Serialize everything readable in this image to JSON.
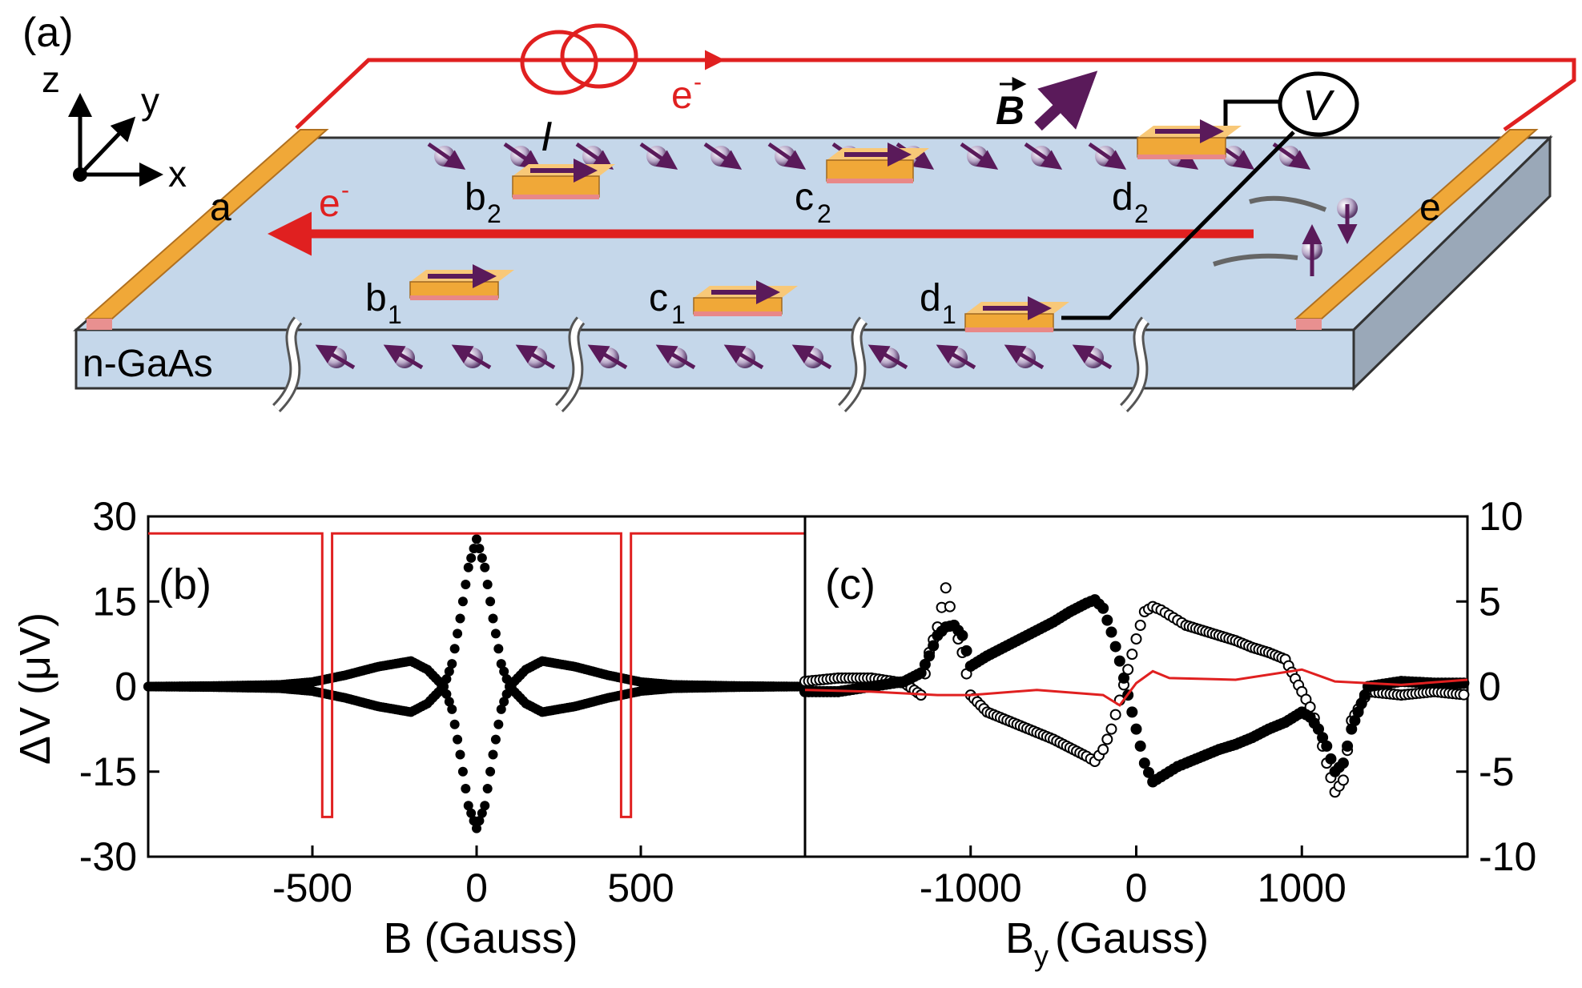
{
  "schematic": {
    "panel_label": "(a)",
    "axes": {
      "z": "z",
      "y": "y",
      "x": "x"
    },
    "current_label": "I",
    "electron_label": "e",
    "electron_sup": "-",
    "field_label": "B",
    "voltmeter_label": "V",
    "material_label": "n-GaAs",
    "contacts": [
      {
        "name": "a"
      },
      {
        "name": "e"
      }
    ],
    "electrodes": [
      {
        "letter": "b",
        "sub": "2"
      },
      {
        "letter": "c",
        "sub": "2"
      },
      {
        "letter": "d",
        "sub": "2"
      },
      {
        "letter": "b",
        "sub": "1"
      },
      {
        "letter": "c",
        "sub": "1"
      },
      {
        "letter": "d",
        "sub": "1"
      }
    ],
    "colors": {
      "substrate": "#c5d7ea",
      "contact": "#f0a838",
      "wire": "#e02020",
      "spin": "#5a1a5a"
    }
  },
  "chart_data": [
    {
      "type": "scatter",
      "panel_label": "(b)",
      "xlabel": "B (Gauss)",
      "ylabel": "ΔV (μV)",
      "xlim": [
        -1000,
        1000
      ],
      "ylim": [
        -30,
        30
      ],
      "xticks": [
        -500,
        0,
        500
      ],
      "yticks": [
        30,
        15,
        0,
        -15,
        -30
      ],
      "series": [
        {
          "marker": "filled-circle",
          "color": "#000000",
          "upper_x": [
            -1000,
            -800,
            -600,
            -500,
            -400,
            -300,
            -200,
            -150,
            -100,
            -75,
            -50,
            -25,
            0,
            25,
            50,
            75,
            100,
            150,
            200,
            300,
            400,
            500,
            600,
            800,
            1000
          ],
          "upper_y": [
            0,
            0.1,
            0.3,
            0.8,
            2,
            3.5,
            4.5,
            3,
            0,
            4,
            12,
            21,
            26,
            21,
            12,
            4,
            0,
            3,
            4.5,
            3.5,
            2,
            0.8,
            0.3,
            0.1,
            0
          ],
          "lower_x": [
            -1000,
            -800,
            -600,
            -500,
            -400,
            -300,
            -200,
            -150,
            -100,
            -75,
            -50,
            -25,
            0,
            25,
            50,
            75,
            100,
            150,
            200,
            300,
            400,
            500,
            600,
            800,
            1000
          ],
          "lower_y": [
            0,
            -0.1,
            -0.3,
            -0.8,
            -2,
            -3.5,
            -4.5,
            -3,
            0,
            -4,
            -12,
            -21,
            -25,
            -21,
            -12,
            -4,
            0,
            -3,
            -4.5,
            -3.5,
            -2,
            -0.8,
            -0.3,
            -0.1,
            0
          ]
        },
        {
          "marker": "line",
          "color": "#e02020",
          "x": [
            -1000,
            -470,
            -470,
            -440,
            -440,
            0,
            440,
            440,
            470,
            470,
            1000
          ],
          "y": [
            27,
            27,
            -23,
            -23,
            27,
            27,
            27,
            -23,
            -23,
            27,
            27
          ]
        }
      ]
    },
    {
      "type": "scatter",
      "panel_label": "(c)",
      "xlabel_main": "B",
      "xlabel_sub": "y",
      "xlabel_unit": "(Gauss)",
      "xlim": [
        -2000,
        2000
      ],
      "ylim": [
        -10,
        10
      ],
      "xticks": [
        -1000,
        0,
        1000
      ],
      "yticks": [
        10,
        5,
        0,
        -5,
        -10
      ],
      "series": [
        {
          "marker": "filled-circle",
          "color": "#000000",
          "x": [
            -2000,
            -1800,
            -1600,
            -1400,
            -1300,
            -1250,
            -1200,
            -1150,
            -1100,
            -1050,
            -1000,
            -900,
            -800,
            -700,
            -600,
            -500,
            -400,
            -300,
            -250,
            -200,
            -150,
            -100,
            -50,
            0,
            50,
            100,
            150,
            200,
            250,
            300,
            400,
            500,
            600,
            700,
            800,
            900,
            1000,
            1050,
            1100,
            1150,
            1200,
            1250,
            1300,
            1400,
            1600,
            1800,
            2000
          ],
          "y": [
            -0.3,
            -0.3,
            0,
            0.3,
            0.8,
            1.8,
            3,
            3.5,
            3.6,
            3,
            1.2,
            1.8,
            2.3,
            2.8,
            3.3,
            3.8,
            4.4,
            4.9,
            5.1,
            4.6,
            3.2,
            1.5,
            -0.5,
            -2.5,
            -4.5,
            -5.6,
            -5.3,
            -5,
            -4.7,
            -4.5,
            -4.1,
            -3.7,
            -3.4,
            -3.0,
            -2.5,
            -2.1,
            -1.5,
            -1.8,
            -2.5,
            -3.5,
            -5,
            -4.5,
            -2.5,
            0,
            0.3,
            0.2,
            0.2
          ]
        },
        {
          "marker": "open-circle",
          "color": "#000000",
          "x": [
            -2000,
            -1800,
            -1600,
            -1400,
            -1300,
            -1250,
            -1200,
            -1150,
            -1100,
            -1050,
            -1000,
            -900,
            -800,
            -700,
            -600,
            -500,
            -400,
            -300,
            -250,
            -200,
            -150,
            -100,
            -50,
            0,
            50,
            100,
            150,
            200,
            250,
            300,
            400,
            500,
            600,
            700,
            800,
            900,
            1000,
            1050,
            1100,
            1150,
            1200,
            1250,
            1300,
            1400,
            1600,
            1800,
            2000
          ],
          "y": [
            0.3,
            0.5,
            0.5,
            0.2,
            -0.5,
            2,
            3.5,
            5.8,
            3.6,
            2,
            -0.5,
            -1.5,
            -1.9,
            -2.3,
            -2.7,
            -3.1,
            -3.6,
            -4.1,
            -4.4,
            -3.7,
            -2.5,
            -0.8,
            1,
            2.8,
            4.4,
            4.7,
            4.5,
            4.2,
            3.9,
            3.6,
            3.3,
            3.0,
            2.7,
            2.3,
            2.0,
            1.6,
            -0.3,
            -1.2,
            -2.5,
            -4.5,
            -6.2,
            -5.5,
            -2,
            -0.3,
            -0.5,
            -0.3,
            -0.5
          ]
        },
        {
          "marker": "line",
          "color": "#e02020",
          "x": [
            -2000,
            -1600,
            -1200,
            -1000,
            -600,
            -200,
            -100,
            0,
            100,
            200,
            600,
            1000,
            1200,
            1600,
            2000
          ],
          "y": [
            -0.2,
            -0.3,
            -0.5,
            -0.5,
            -0.2,
            -0.5,
            -1.1,
            0.2,
            0.9,
            0.5,
            0.4,
            1.0,
            0.3,
            0.1,
            0.4
          ]
        }
      ]
    }
  ],
  "right_axis_ticks": [
    "10",
    "5",
    "0",
    "-5",
    "-10"
  ],
  "left_axis_ticks": [
    "30",
    "15",
    "0",
    "-15",
    "-30"
  ],
  "b_xticks": [
    "-500",
    "0",
    "500"
  ],
  "c_xticks": [
    "-1000",
    "0",
    "1000"
  ]
}
